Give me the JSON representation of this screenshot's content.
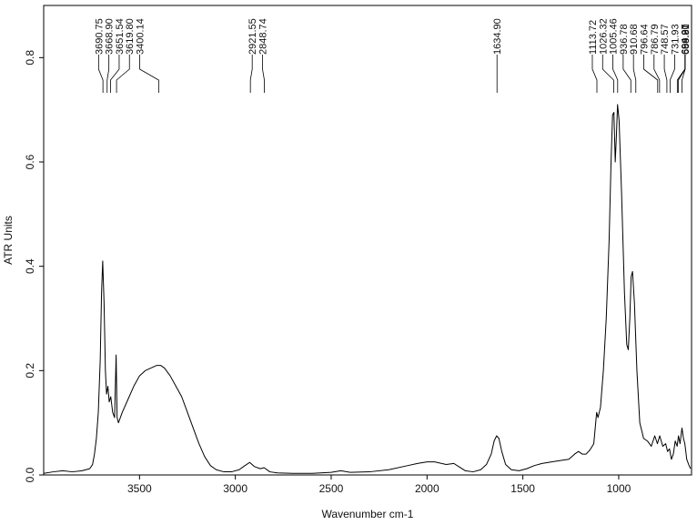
{
  "chart_data": {
    "type": "line",
    "title": "",
    "xlabel": "Wavenumber cm-1",
    "ylabel": "ATR Units",
    "xlim": [
      4000,
      620
    ],
    "ylim": [
      0,
      0.9
    ],
    "x_reversed": true,
    "grid": false,
    "legend": "none",
    "x_ticks": [
      3500,
      3000,
      2500,
      2000,
      1500,
      1000
    ],
    "x_tick_labels": [
      "3500",
      "3000",
      "2500",
      "2000",
      "1500",
      "1000"
    ],
    "y_ticks": [
      0.0,
      0.2,
      0.4,
      0.6,
      0.8
    ],
    "y_tick_labels": [
      "0.0",
      "0.2",
      "0.4",
      "0.6",
      "0.8"
    ],
    "line_color": "#000000",
    "peak_labels": [
      "3690.75",
      "3668.90",
      "3651.54",
      "3619.80",
      "3400.14",
      "2921.55",
      "2848.74",
      "1634.90",
      "1113.72",
      "1026.32",
      "1005.46",
      "936.78",
      "910.68",
      "796.64",
      "786.79",
      "748.57",
      "731.93",
      "694.27",
      "688.90",
      "669.81"
    ],
    "peaks": [
      3690.75,
      3668.9,
      3651.54,
      3619.8,
      3400.14,
      2921.55,
      2848.74,
      1634.9,
      1113.72,
      1026.32,
      1005.46,
      936.78,
      910.68,
      796.64,
      786.79,
      748.57,
      731.93,
      694.27,
      688.9,
      669.81
    ],
    "series": [
      {
        "values": [
          [
            4000,
            0.003
          ],
          [
            3950,
            0.006
          ],
          [
            3900,
            0.008
          ],
          [
            3850,
            0.006
          ],
          [
            3800,
            0.008
          ],
          [
            3780,
            0.01
          ],
          [
            3760,
            0.012
          ],
          [
            3745,
            0.02
          ],
          [
            3735,
            0.04
          ],
          [
            3725,
            0.07
          ],
          [
            3715,
            0.12
          ],
          [
            3705,
            0.22
          ],
          [
            3698,
            0.35
          ],
          [
            3692,
            0.41
          ],
          [
            3685,
            0.33
          ],
          [
            3678,
            0.2
          ],
          [
            3672,
            0.155
          ],
          [
            3665,
            0.17
          ],
          [
            3658,
            0.14
          ],
          [
            3650,
            0.15
          ],
          [
            3640,
            0.12
          ],
          [
            3630,
            0.11
          ],
          [
            3622,
            0.23
          ],
          [
            3617,
            0.11
          ],
          [
            3610,
            0.1
          ],
          [
            3590,
            0.12
          ],
          [
            3560,
            0.145
          ],
          [
            3530,
            0.17
          ],
          [
            3500,
            0.19
          ],
          [
            3470,
            0.2
          ],
          [
            3440,
            0.205
          ],
          [
            3410,
            0.21
          ],
          [
            3390,
            0.21
          ],
          [
            3370,
            0.205
          ],
          [
            3340,
            0.19
          ],
          [
            3310,
            0.17
          ],
          [
            3280,
            0.15
          ],
          [
            3250,
            0.12
          ],
          [
            3220,
            0.09
          ],
          [
            3190,
            0.06
          ],
          [
            3160,
            0.035
          ],
          [
            3130,
            0.018
          ],
          [
            3100,
            0.01
          ],
          [
            3060,
            0.006
          ],
          [
            3020,
            0.006
          ],
          [
            2980,
            0.01
          ],
          [
            2950,
            0.018
          ],
          [
            2925,
            0.024
          ],
          [
            2900,
            0.016
          ],
          [
            2870,
            0.012
          ],
          [
            2850,
            0.014
          ],
          [
            2820,
            0.006
          ],
          [
            2780,
            0.004
          ],
          [
            2700,
            0.003
          ],
          [
            2600,
            0.003
          ],
          [
            2500,
            0.005
          ],
          [
            2450,
            0.008
          ],
          [
            2400,
            0.005
          ],
          [
            2300,
            0.006
          ],
          [
            2200,
            0.01
          ],
          [
            2100,
            0.018
          ],
          [
            2050,
            0.022
          ],
          [
            2000,
            0.025
          ],
          [
            1960,
            0.025
          ],
          [
            1900,
            0.02
          ],
          [
            1860,
            0.022
          ],
          [
            1830,
            0.015
          ],
          [
            1800,
            0.008
          ],
          [
            1760,
            0.006
          ],
          [
            1720,
            0.01
          ],
          [
            1690,
            0.02
          ],
          [
            1665,
            0.04
          ],
          [
            1650,
            0.065
          ],
          [
            1637,
            0.075
          ],
          [
            1625,
            0.07
          ],
          [
            1610,
            0.045
          ],
          [
            1590,
            0.02
          ],
          [
            1560,
            0.01
          ],
          [
            1520,
            0.008
          ],
          [
            1480,
            0.012
          ],
          [
            1440,
            0.018
          ],
          [
            1400,
            0.022
          ],
          [
            1350,
            0.025
          ],
          [
            1300,
            0.028
          ],
          [
            1260,
            0.03
          ],
          [
            1230,
            0.04
          ],
          [
            1210,
            0.045
          ],
          [
            1190,
            0.04
          ],
          [
            1170,
            0.04
          ],
          [
            1150,
            0.048
          ],
          [
            1130,
            0.06
          ],
          [
            1115,
            0.12
          ],
          [
            1108,
            0.11
          ],
          [
            1095,
            0.13
          ],
          [
            1080,
            0.2
          ],
          [
            1065,
            0.3
          ],
          [
            1050,
            0.45
          ],
          [
            1040,
            0.6
          ],
          [
            1032,
            0.69
          ],
          [
            1025,
            0.695
          ],
          [
            1018,
            0.6
          ],
          [
            1012,
            0.65
          ],
          [
            1006,
            0.71
          ],
          [
            998,
            0.68
          ],
          [
            985,
            0.54
          ],
          [
            970,
            0.35
          ],
          [
            958,
            0.25
          ],
          [
            950,
            0.24
          ],
          [
            942,
            0.3
          ],
          [
            935,
            0.38
          ],
          [
            928,
            0.39
          ],
          [
            918,
            0.33
          ],
          [
            905,
            0.2
          ],
          [
            890,
            0.1
          ],
          [
            870,
            0.07
          ],
          [
            850,
            0.065
          ],
          [
            830,
            0.055
          ],
          [
            812,
            0.075
          ],
          [
            798,
            0.06
          ],
          [
            786,
            0.075
          ],
          [
            770,
            0.055
          ],
          [
            755,
            0.06
          ],
          [
            745,
            0.045
          ],
          [
            735,
            0.05
          ],
          [
            725,
            0.03
          ],
          [
            715,
            0.04
          ],
          [
            705,
            0.065
          ],
          [
            695,
            0.055
          ],
          [
            688,
            0.075
          ],
          [
            680,
            0.06
          ],
          [
            670,
            0.09
          ],
          [
            662,
            0.07
          ],
          [
            655,
            0.06
          ],
          [
            645,
            0.03
          ],
          [
            635,
            0.02
          ],
          [
            625,
            0.012
          ]
        ]
      }
    ]
  }
}
